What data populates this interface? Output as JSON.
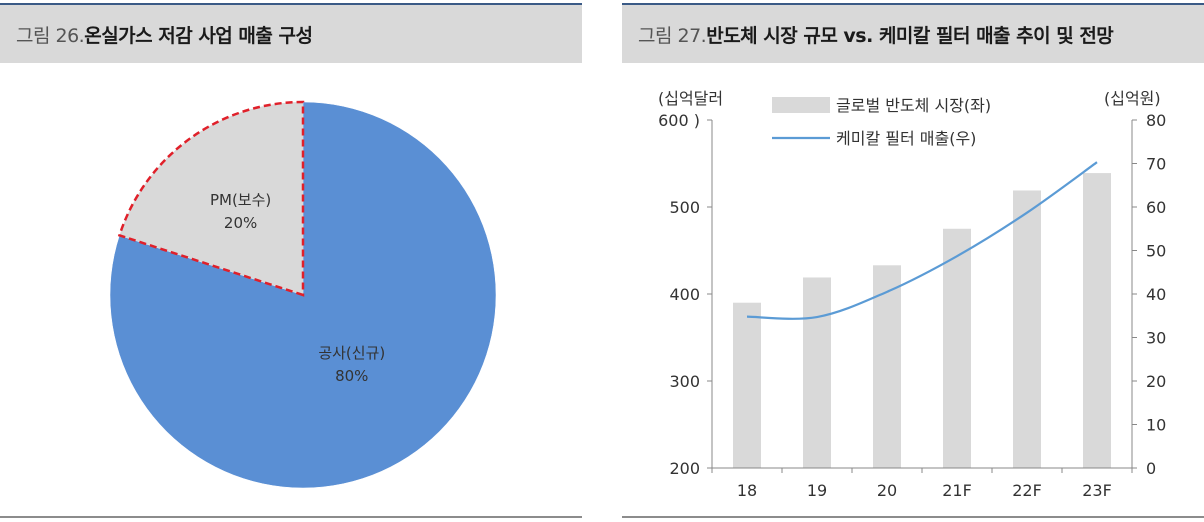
{
  "left_panel": {
    "fig_label": "그림 26.",
    "title": "온실가스 저감 사업 매출 구성"
  },
  "right_panel": {
    "fig_label": "그림 27.",
    "title": "반도체 시장 규모 vs. 케미칼 필터 매출 추이 및 전망"
  },
  "chart_data": [
    {
      "type": "pie",
      "categories": [
        "공사(신규)",
        "PM(보수)"
      ],
      "values": [
        80,
        20
      ],
      "data_labels": [
        "80%",
        "20%"
      ],
      "colors": [
        "#5a8fd4",
        "#d9d9d9"
      ],
      "highlight_border": "#e0202a"
    },
    {
      "type": "bar",
      "categories": [
        "18",
        "19",
        "20",
        "21F",
        "22F",
        "23F"
      ],
      "series": [
        {
          "name": "글로벌 반도체 시장(좌)",
          "type": "bar",
          "axis": "left",
          "values": [
            390,
            419,
            433,
            475,
            519,
            539
          ],
          "color": "#d9d9d9"
        },
        {
          "name": "케미칼 필터 매출(우)",
          "type": "line",
          "axis": "right",
          "values": [
            34.8,
            34.7,
            40.5,
            48.7,
            58.7,
            70.3
          ],
          "color": "#5b9bd5"
        }
      ],
      "ylabel": "(십억달러",
      "ylabel_right": "(십억원)",
      "ylim": [
        200,
        600
      ],
      "ylim_right": [
        0,
        80
      ],
      "yticks": [
        "200",
        "300",
        "400",
        "500",
        "600 )"
      ],
      "yticks_right": [
        "0",
        "10",
        "20",
        "30",
        "40",
        "50",
        "60",
        "70",
        "80"
      ],
      "grid": false,
      "legend_position": "top"
    }
  ]
}
